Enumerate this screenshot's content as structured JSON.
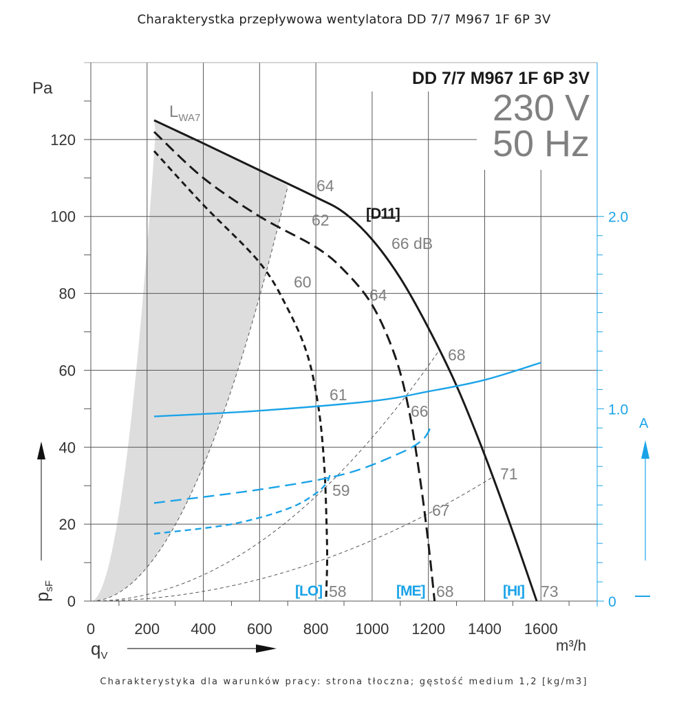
{
  "title": "Charakterystka przepływowa wentylatora DD 7/7 M967 1F 6P 3V",
  "footnote": "Charakterystyka dla warunków pracy: strona tłoczna; gęstość medium 1,2 [kg/m3]",
  "chart_data": {
    "type": "line",
    "title": "DD 7/7 M967 1F 6P 3V",
    "voltage": "230 V",
    "frequency": "50 Hz",
    "model_code": "[D11]",
    "xlabel": "q",
    "xlabel_sub": "V",
    "xunit": "m³/h",
    "ylabel": "p",
    "ylabel_sub": "sF",
    "yunit": "Pa",
    "y2unit": "A",
    "xlim": [
      0,
      1800
    ],
    "ylim": [
      0,
      140
    ],
    "y2lim": [
      0,
      2.8
    ],
    "grid": true,
    "x_ticks": [
      "0",
      "200",
      "400",
      "600",
      "800",
      "1000",
      "1200",
      "1400",
      "1600"
    ],
    "y_ticks": [
      "0",
      "20",
      "40",
      "60",
      "80",
      "100",
      "120"
    ],
    "y2_ticks": [
      "0",
      "1.0",
      "2.0"
    ],
    "noise_label": "L",
    "noise_label_sub": "WA7",
    "colors": {
      "pressure": "#1a1a1a",
      "current": "#1aa3e8",
      "system": "#555555",
      "shade": "#dddddd",
      "label": "#808080"
    },
    "series": [
      {
        "name": "HI pressure",
        "label": "[HI]",
        "axis": "Pa",
        "style": "solid",
        "x": [
          225,
          400,
          600,
          800,
          900,
          1000,
          1100,
          1200,
          1300,
          1400,
          1500,
          1585
        ],
        "y": [
          125,
          119,
          112,
          105,
          101,
          94,
          84,
          71,
          56,
          38,
          18,
          0
        ]
      },
      {
        "name": "ME pressure",
        "label": "[ME]",
        "axis": "Pa",
        "style": "longdash",
        "x": [
          225,
          400,
          600,
          800,
          900,
          1000,
          1080,
          1130,
          1170,
          1200,
          1222
        ],
        "y": [
          122,
          110,
          100,
          92,
          86,
          77,
          64,
          50,
          32,
          15,
          0
        ]
      },
      {
        "name": "LO pressure",
        "label": "[LO]",
        "axis": "Pa",
        "style": "dash",
        "x": [
          225,
          400,
          600,
          700,
          770,
          810,
          830,
          838,
          840,
          836
        ],
        "y": [
          117,
          103,
          88,
          76,
          64,
          50,
          35,
          20,
          10,
          0
        ]
      },
      {
        "name": "HI current",
        "axis": "A",
        "style": "solid",
        "x": [
          225,
          600,
          1000,
          1200,
          1400,
          1600
        ],
        "y": [
          0.96,
          0.99,
          1.04,
          1.09,
          1.15,
          1.24
        ]
      },
      {
        "name": "ME current",
        "axis": "A",
        "style": "longdash",
        "x": [
          225,
          600,
          900,
          1100,
          1180,
          1210
        ],
        "y": [
          0.51,
          0.58,
          0.66,
          0.77,
          0.84,
          0.91
        ]
      },
      {
        "name": "LO current",
        "axis": "A",
        "style": "dash",
        "x": [
          225,
          500,
          700,
          800,
          840,
          852
        ],
        "y": [
          0.35,
          0.4,
          0.48,
          0.56,
          0.62,
          0.67
        ]
      }
    ],
    "system_curves": [
      {
        "k": 0.00022,
        "xmax": 700
      },
      {
        "k": 4.25e-05,
        "xmax": 1245
      },
      {
        "k": 1.58e-05,
        "xmax": 1430
      }
    ],
    "db_labels": [
      "64",
      "62",
      "60",
      "66 dB",
      "64",
      "68",
      "61",
      "66",
      "59",
      "67",
      "71",
      "58",
      "68",
      "73"
    ]
  }
}
